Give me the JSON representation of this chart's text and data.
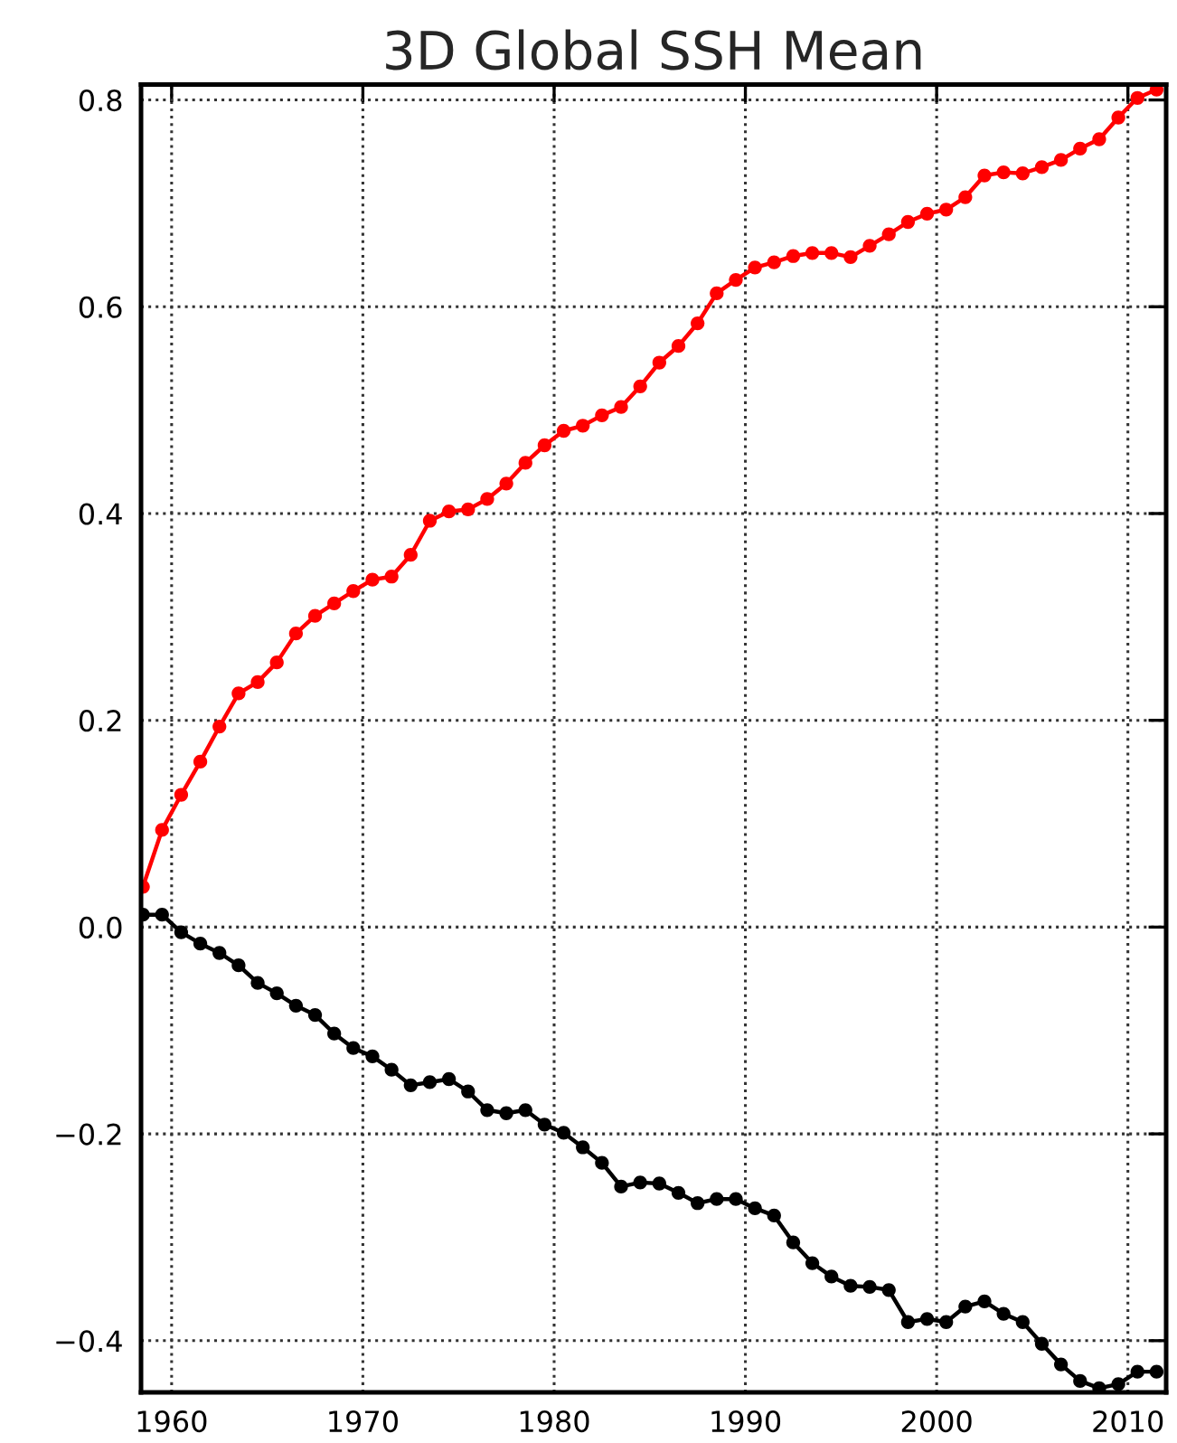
{
  "chart_data": {
    "type": "line",
    "title": "3D Global SSH Mean",
    "x": [
      1958.5,
      1959.5,
      1960.5,
      1961.5,
      1962.5,
      1963.5,
      1964.5,
      1965.5,
      1966.5,
      1967.5,
      1968.5,
      1969.5,
      1970.5,
      1971.5,
      1972.5,
      1973.5,
      1974.5,
      1975.5,
      1976.5,
      1977.5,
      1978.5,
      1979.5,
      1980.5,
      1981.5,
      1982.5,
      1983.5,
      1984.5,
      1985.5,
      1986.5,
      1987.5,
      1988.5,
      1989.5,
      1990.5,
      1991.5,
      1992.5,
      1993.5,
      1994.5,
      1995.5,
      1996.5,
      1997.5,
      1998.5,
      1999.5,
      2000.5,
      2001.5,
      2002.5,
      2003.5,
      2004.5,
      2005.5,
      2006.5,
      2007.5,
      2008.5,
      2009.5,
      2010.5,
      2011.5
    ],
    "series": [
      {
        "color": "#ff0000",
        "values": [
          0.039,
          0.094,
          0.128,
          0.16,
          0.194,
          0.226,
          0.237,
          0.256,
          0.284,
          0.301,
          0.313,
          0.325,
          0.336,
          0.339,
          0.36,
          0.393,
          0.402,
          0.404,
          0.414,
          0.429,
          0.449,
          0.466,
          0.48,
          0.485,
          0.495,
          0.503,
          0.523,
          0.546,
          0.562,
          0.584,
          0.613,
          0.626,
          0.638,
          0.643,
          0.649,
          0.652,
          0.652,
          0.648,
          0.659,
          0.67,
          0.682,
          0.69,
          0.694,
          0.706,
          0.727,
          0.73,
          0.729,
          0.735,
          0.742,
          0.753,
          0.762,
          0.783,
          0.802,
          0.81
        ]
      },
      {
        "color": "#000000",
        "values": [
          0.012,
          0.012,
          -0.005,
          -0.016,
          -0.025,
          -0.037,
          -0.054,
          -0.064,
          -0.076,
          -0.085,
          -0.103,
          -0.117,
          -0.125,
          -0.138,
          -0.153,
          -0.15,
          -0.147,
          -0.159,
          -0.177,
          -0.18,
          -0.177,
          -0.191,
          -0.199,
          -0.213,
          -0.228,
          -0.251,
          -0.247,
          -0.248,
          -0.257,
          -0.267,
          -0.263,
          -0.263,
          -0.272,
          -0.279,
          -0.305,
          -0.325,
          -0.338,
          -0.347,
          -0.348,
          -0.351,
          -0.382,
          -0.379,
          -0.382,
          -0.367,
          -0.362,
          -0.374,
          -0.382,
          -0.403,
          -0.423,
          -0.439,
          -0.446,
          -0.442,
          -0.43,
          -0.43
        ]
      }
    ],
    "xlim": [
      1958.4,
      2012.0
    ],
    "xticks": [
      1960,
      1970,
      1980,
      1990,
      2000,
      2010
    ],
    "ylim": [
      -0.45,
      0.815
    ],
    "yticks": [
      {
        "value": -0.4,
        "label": "−0.4"
      },
      {
        "value": -0.2,
        "label": "−0.2"
      },
      {
        "value": 0,
        "label": "0.0"
      },
      0.2,
      0.4,
      0.6,
      0.8
    ],
    "grid": true,
    "marker": "circle",
    "line_style": "solid"
  }
}
